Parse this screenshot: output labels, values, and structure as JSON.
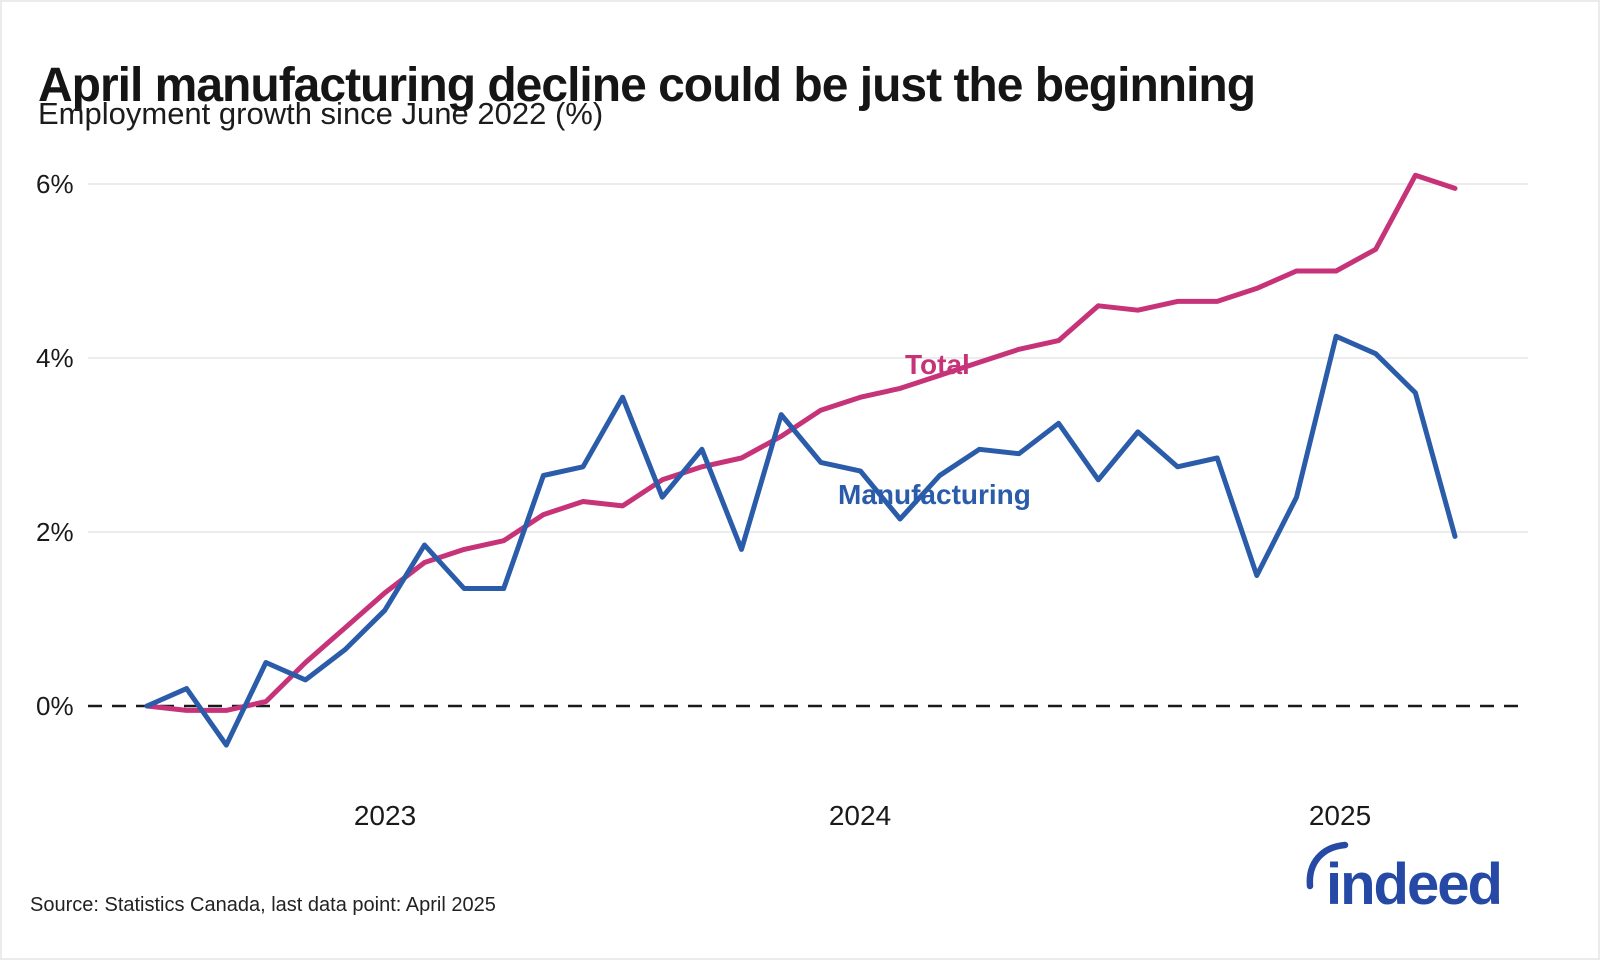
{
  "chart_data": {
    "type": "line",
    "title": "April manufacturing decline could be just the beginning",
    "subtitle": "Employment growth since June 2022 (%)",
    "source": "Source: Statistics Canada, last data point: April 2025",
    "x": [
      "Jul 2022",
      "Aug 2022",
      "Sep 2022",
      "Oct 2022",
      "Nov 2022",
      "Dec 2022",
      "Jan 2023",
      "Feb 2023",
      "Mar 2023",
      "Apr 2023",
      "May 2023",
      "Jun 2023",
      "Jul 2023",
      "Aug 2023",
      "Sep 2023",
      "Oct 2023",
      "Nov 2023",
      "Dec 2023",
      "Jan 2024",
      "Feb 2024",
      "Mar 2024",
      "Apr 2024",
      "May 2024",
      "Jun 2024",
      "Jul 2024",
      "Aug 2024",
      "Sep 2024",
      "Oct 2024",
      "Nov 2024",
      "Dec 2024",
      "Jan 2025",
      "Feb 2025",
      "Mar 2025",
      "Apr 2025"
    ],
    "series": [
      {
        "name": "Total",
        "color": "#c73378",
        "values": [
          0.0,
          -0.05,
          -0.05,
          0.05,
          0.5,
          0.9,
          1.3,
          1.65,
          1.8,
          1.9,
          2.2,
          2.35,
          2.3,
          2.6,
          2.75,
          2.85,
          3.1,
          3.4,
          3.55,
          3.65,
          3.8,
          3.95,
          4.1,
          4.2,
          4.6,
          4.55,
          4.65,
          4.65,
          4.8,
          5.0,
          5.0,
          5.25,
          6.1,
          5.95
        ]
      },
      {
        "name": "Manufacturing",
        "color": "#2a5caa",
        "values": [
          0.0,
          0.2,
          -0.45,
          0.5,
          0.3,
          0.65,
          1.1,
          1.85,
          1.35,
          1.35,
          2.65,
          2.75,
          3.55,
          2.4,
          2.95,
          1.8,
          3.35,
          2.8,
          2.7,
          2.15,
          2.65,
          2.95,
          2.9,
          3.25,
          2.6,
          3.15,
          2.75,
          2.85,
          1.5,
          2.4,
          4.25,
          4.05,
          3.6,
          1.95
        ]
      }
    ],
    "yticks": [
      0,
      2,
      4,
      6
    ],
    "ytick_labels": [
      "0%",
      "2%",
      "4%",
      "6%"
    ],
    "xtick_labels": [
      "2023",
      "2024",
      "2025"
    ],
    "ylim": [
      -1.0,
      6.6
    ],
    "grid": "horizontal",
    "zero_line": "dashed",
    "legend": "inline-labels"
  },
  "branding": {
    "logo_text": "indeed",
    "logo_color": "#2549a5"
  }
}
